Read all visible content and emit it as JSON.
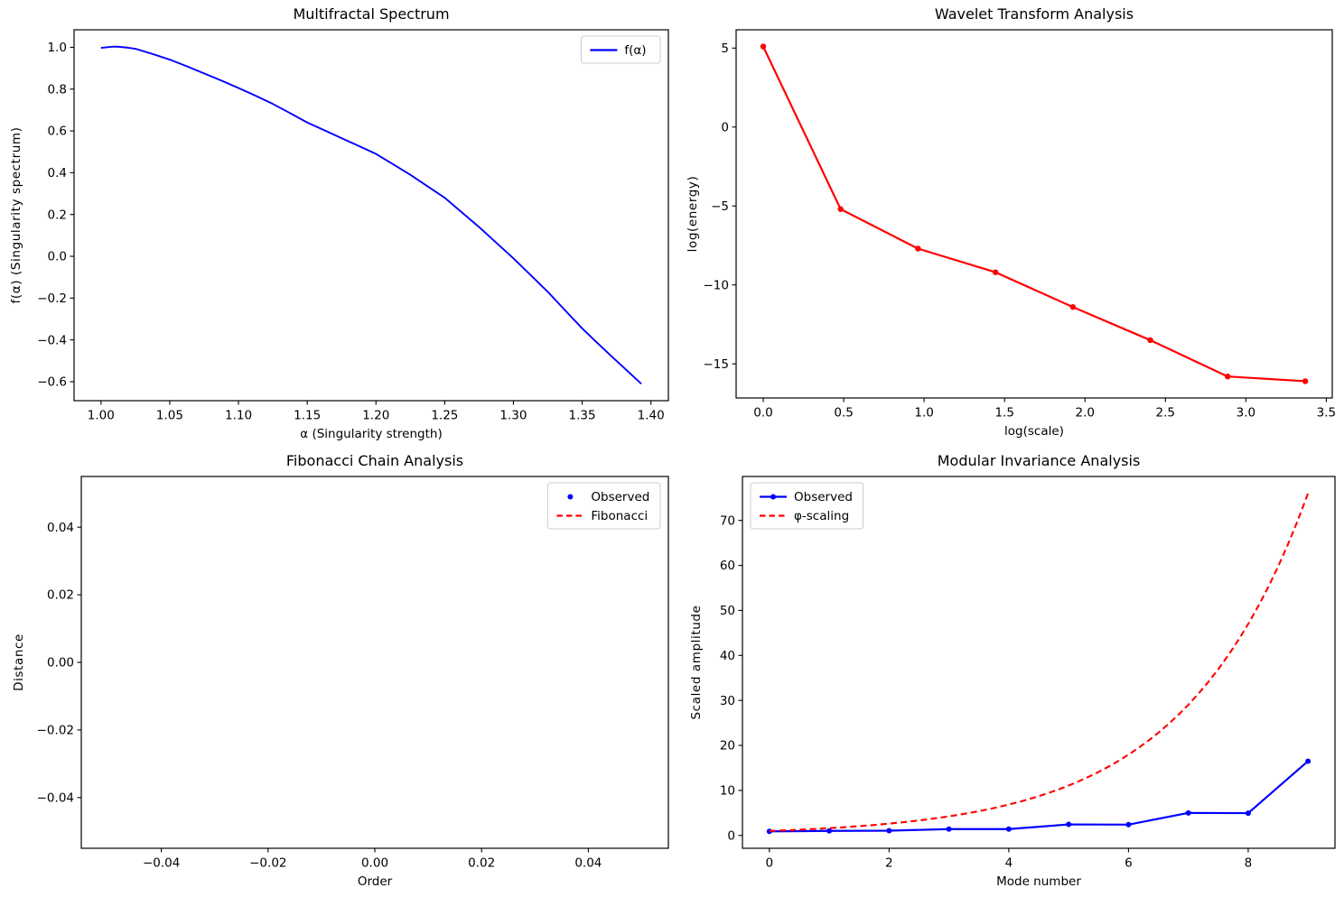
{
  "figure": {
    "background": "#ffffff"
  },
  "colors": {
    "blue": "#0000ff",
    "red": "#ff0000",
    "axis": "#000000",
    "legend_border": "#cccccc",
    "legend_bg": "#ffffff"
  },
  "chart_data": [
    {
      "id": "multifractal-spectrum",
      "type": "line",
      "title": "Multifractal Spectrum",
      "xlabel": "α (Singularity strength)",
      "ylabel": "f(α) (Singularity spectrum)",
      "xlim": [
        0.9804,
        1.4127
      ],
      "ylim": [
        -0.6907,
        1.0837
      ],
      "grid": false,
      "x_ticks": [
        {
          "v": 1.0,
          "label": "1.00"
        },
        {
          "v": 1.05,
          "label": "1.05"
        },
        {
          "v": 1.1,
          "label": "1.10"
        },
        {
          "v": 1.15,
          "label": "1.15"
        },
        {
          "v": 1.2,
          "label": "1.20"
        },
        {
          "v": 1.25,
          "label": "1.25"
        },
        {
          "v": 1.3,
          "label": "1.30"
        },
        {
          "v": 1.35,
          "label": "1.35"
        },
        {
          "v": 1.4,
          "label": "1.40"
        }
      ],
      "y_ticks": [
        {
          "v": -0.6,
          "label": "−0.6"
        },
        {
          "v": -0.4,
          "label": "−0.4"
        },
        {
          "v": -0.2,
          "label": "−0.2"
        },
        {
          "v": 0.0,
          "label": "0.0"
        },
        {
          "v": 0.2,
          "label": "0.2"
        },
        {
          "v": 0.4,
          "label": "0.4"
        },
        {
          "v": 0.6,
          "label": "0.6"
        },
        {
          "v": 0.8,
          "label": "0.8"
        },
        {
          "v": 1.0,
          "label": "1.0"
        }
      ],
      "legend": {
        "location": "upper right",
        "entries": [
          {
            "label": "f(α)",
            "color": "#0000ff",
            "style": "line"
          }
        ]
      },
      "series": [
        {
          "name": "f(α)",
          "color": "#0000ff",
          "line": "solid",
          "linewidth": 1.9,
          "marker": "none",
          "points": [
            [
              1.0,
              0.997
            ],
            [
              1.004,
              1.0
            ],
            [
              1.008,
              1.0025
            ],
            [
              1.012,
              1.003
            ],
            [
              1.018,
              0.999
            ],
            [
              1.025,
              0.993
            ],
            [
              1.0375,
              0.968
            ],
            [
              1.05,
              0.941
            ],
            [
              1.0625,
              0.909
            ],
            [
              1.075,
              0.875
            ],
            [
              1.0875,
              0.841
            ],
            [
              1.1,
              0.805
            ],
            [
              1.1125,
              0.768
            ],
            [
              1.125,
              0.729
            ],
            [
              1.1375,
              0.685
            ],
            [
              1.15,
              0.64
            ],
            [
              1.1625,
              0.603
            ],
            [
              1.175,
              0.565
            ],
            [
              1.1875,
              0.528
            ],
            [
              1.2,
              0.49
            ],
            [
              1.2125,
              0.44
            ],
            [
              1.225,
              0.39
            ],
            [
              1.2375,
              0.335
            ],
            [
              1.25,
              0.28
            ],
            [
              1.2625,
              0.21
            ],
            [
              1.275,
              0.14
            ],
            [
              1.2875,
              0.065
            ],
            [
              1.3,
              -0.01
            ],
            [
              1.3125,
              -0.09
            ],
            [
              1.325,
              -0.17
            ],
            [
              1.3375,
              -0.258
            ],
            [
              1.35,
              -0.345
            ],
            [
              1.36,
              -0.408
            ],
            [
              1.37,
              -0.47
            ],
            [
              1.3815,
              -0.54
            ],
            [
              1.393,
              -0.61
            ]
          ]
        }
      ]
    },
    {
      "id": "wavelet-transform",
      "type": "line",
      "title": "Wavelet Transform Analysis",
      "xlabel": "log(scale)",
      "ylabel": "log(energy)",
      "xlim": [
        -0.1684,
        3.5369
      ],
      "ylim": [
        -17.16,
        6.16
      ],
      "grid": false,
      "x_ticks": [
        {
          "v": 0.0,
          "label": "0.0"
        },
        {
          "v": 0.5,
          "label": "0.5"
        },
        {
          "v": 1.0,
          "label": "1.0"
        },
        {
          "v": 1.5,
          "label": "1.5"
        },
        {
          "v": 2.0,
          "label": "2.0"
        },
        {
          "v": 2.5,
          "label": "2.5"
        },
        {
          "v": 3.0,
          "label": "3.0"
        },
        {
          "v": 3.5,
          "label": "3.5"
        }
      ],
      "y_ticks": [
        {
          "v": -15,
          "label": "−15"
        },
        {
          "v": -10,
          "label": "−10"
        },
        {
          "v": -5,
          "label": "−5"
        },
        {
          "v": 0,
          "label": "0"
        },
        {
          "v": 5,
          "label": "5"
        }
      ],
      "legend": null,
      "series": [
        {
          "name": "log-energy",
          "color": "#ff0000",
          "line": "solid",
          "linewidth": 2.2,
          "marker": "dot",
          "marker_r": 3.2,
          "points": [
            [
              0.0,
              5.1
            ],
            [
              0.481,
              -5.2
            ],
            [
              0.962,
              -7.7
            ],
            [
              1.444,
              -9.2
            ],
            [
              1.925,
              -11.4
            ],
            [
              2.406,
              -13.5
            ],
            [
              2.887,
              -15.8
            ],
            [
              3.369,
              -16.1
            ]
          ]
        }
      ]
    },
    {
      "id": "fibonacci-chain",
      "type": "scatter",
      "title": "Fibonacci Chain Analysis",
      "xlabel": "Order",
      "ylabel": "Distance",
      "xlim": [
        -0.055,
        0.055
      ],
      "ylim": [
        -0.055,
        0.055
      ],
      "grid": false,
      "x_ticks": [
        {
          "v": -0.04,
          "label": "−0.04"
        },
        {
          "v": -0.02,
          "label": "−0.02"
        },
        {
          "v": 0.0,
          "label": "0.00"
        },
        {
          "v": 0.02,
          "label": "0.02"
        },
        {
          "v": 0.04,
          "label": "0.04"
        }
      ],
      "y_ticks": [
        {
          "v": -0.04,
          "label": "−0.04"
        },
        {
          "v": -0.02,
          "label": "−0.02"
        },
        {
          "v": 0.0,
          "label": "0.00"
        },
        {
          "v": 0.02,
          "label": "0.02"
        },
        {
          "v": 0.04,
          "label": "0.04"
        }
      ],
      "legend": {
        "location": "upper right",
        "entries": [
          {
            "label": "Observed",
            "color": "#0000ff",
            "style": "dot"
          },
          {
            "label": "Fibonacci",
            "color": "#ff0000",
            "style": "dashed"
          }
        ]
      },
      "series": [
        {
          "name": "Observed",
          "color": "#0000ff",
          "line": "none",
          "marker": "dot",
          "marker_r": 3,
          "points": []
        },
        {
          "name": "Fibonacci",
          "color": "#ff0000",
          "line": "dashed",
          "linewidth": 2,
          "marker": "none",
          "points": []
        }
      ]
    },
    {
      "id": "modular-invariance",
      "type": "line",
      "title": "Modular Invariance Analysis",
      "xlabel": "Mode number",
      "ylabel": "Scaled amplitude",
      "xlim": [
        -0.45,
        9.45
      ],
      "ylim": [
        -2.856,
        79.77
      ],
      "grid": false,
      "x_ticks": [
        {
          "v": 0,
          "label": "0"
        },
        {
          "v": 2,
          "label": "2"
        },
        {
          "v": 4,
          "label": "4"
        },
        {
          "v": 6,
          "label": "6"
        },
        {
          "v": 8,
          "label": "8"
        }
      ],
      "y_ticks": [
        {
          "v": 0,
          "label": "0"
        },
        {
          "v": 10,
          "label": "10"
        },
        {
          "v": 20,
          "label": "20"
        },
        {
          "v": 30,
          "label": "30"
        },
        {
          "v": 40,
          "label": "40"
        },
        {
          "v": 50,
          "label": "50"
        },
        {
          "v": 60,
          "label": "60"
        },
        {
          "v": 70,
          "label": "70"
        }
      ],
      "legend": {
        "location": "upper left",
        "entries": [
          {
            "label": "Observed",
            "color": "#0000ff",
            "style": "line+dot"
          },
          {
            "label": "φ-scaling",
            "color": "#ff0000",
            "style": "dashed"
          }
        ]
      },
      "series": [
        {
          "name": "Observed",
          "color": "#0000ff",
          "line": "solid",
          "linewidth": 2.2,
          "marker": "dot",
          "marker_r": 3,
          "points": [
            [
              0,
              0.9
            ],
            [
              1,
              1.0
            ],
            [
              2,
              1.05
            ],
            [
              3,
              1.4
            ],
            [
              4,
              1.4
            ],
            [
              5,
              2.45
            ],
            [
              6,
              2.4
            ],
            [
              7,
              5.0
            ],
            [
              8,
              4.95
            ],
            [
              9,
              16.5
            ]
          ]
        },
        {
          "name": "φ-scaling",
          "color": "#ff0000",
          "line": "dashed",
          "linewidth": 2.1,
          "marker": "none",
          "interp": "exp",
          "points": [
            [
              0,
              1.0
            ],
            [
              1,
              1.618
            ],
            [
              2,
              2.618
            ],
            [
              3,
              4.236
            ],
            [
              4,
              6.854
            ],
            [
              5,
              11.09
            ],
            [
              6,
              17.944
            ],
            [
              7,
              29.034
            ],
            [
              8,
              46.979
            ],
            [
              9,
              76.013
            ]
          ]
        }
      ]
    }
  ]
}
